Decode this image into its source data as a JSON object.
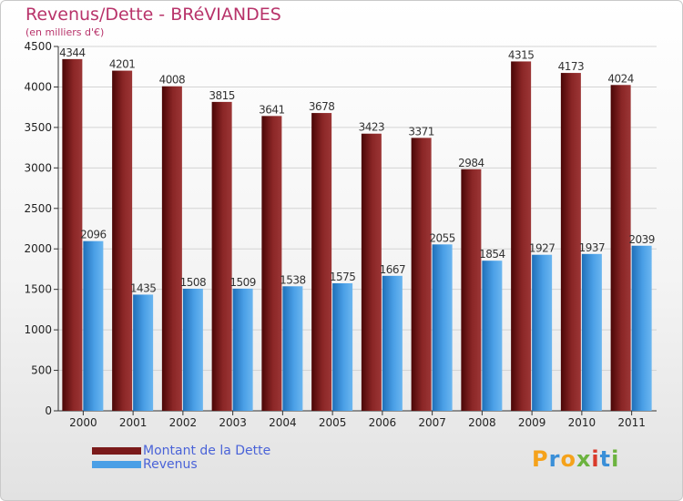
{
  "title": "Revenus/Dette - BRéVIANDES",
  "subtitle": "(en milliers d'€)",
  "logo": {
    "letters": [
      "P",
      "r",
      "o",
      "x",
      "i",
      "t",
      "i"
    ],
    "colors": [
      "#f5a21b",
      "#3a8fd8",
      "#f5a21b",
      "#6cb33f",
      "#d93a2b",
      "#3a8fd8",
      "#6cb33f"
    ]
  },
  "legend": [
    {
      "label": "Montant de la Dette",
      "color": "#7a1a1a"
    },
    {
      "label": "Revenus",
      "color": "#4a9fe6"
    }
  ],
  "chart_data": {
    "type": "bar",
    "categories": [
      "2000",
      "2001",
      "2002",
      "2003",
      "2004",
      "2005",
      "2006",
      "2007",
      "2008",
      "2009",
      "2010",
      "2011"
    ],
    "series": [
      {
        "name": "Montant de la Dette",
        "values": [
          4344,
          4201,
          4008,
          3815,
          3641,
          3678,
          3423,
          3371,
          2984,
          4315,
          4173,
          4024
        ],
        "color": "#7a1a1a"
      },
      {
        "name": "Revenus",
        "values": [
          2096,
          1435,
          1508,
          1509,
          1538,
          1575,
          1667,
          2055,
          1854,
          1927,
          1937,
          2039
        ],
        "color": "#4a9fe6"
      }
    ],
    "ylim": [
      0,
      4500
    ],
    "yticks": [
      0,
      500,
      1000,
      1500,
      2000,
      2500,
      3000,
      3500,
      4000,
      4500
    ],
    "grid": true,
    "legend_position": "bottom-left"
  }
}
